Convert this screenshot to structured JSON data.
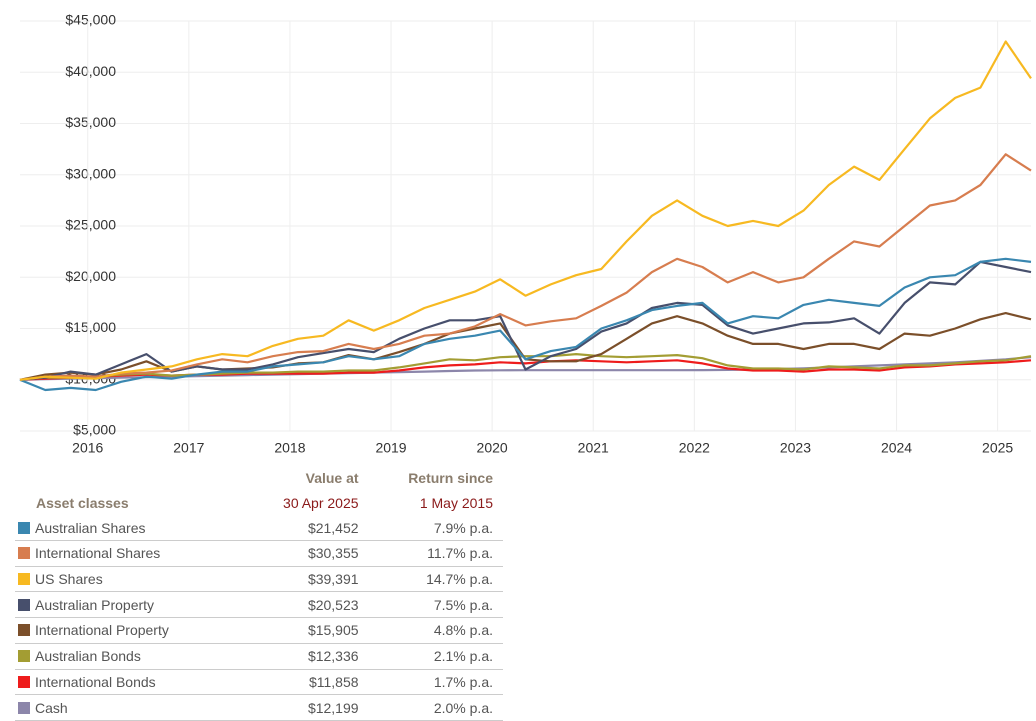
{
  "chart_data": {
    "type": "line",
    "x": [
      2015.33,
      2015.58,
      2015.83,
      2016.08,
      2016.33,
      2016.58,
      2016.83,
      2017.08,
      2017.33,
      2017.58,
      2017.83,
      2018.08,
      2018.33,
      2018.58,
      2018.83,
      2019.08,
      2019.33,
      2019.58,
      2019.83,
      2020.08,
      2020.33,
      2020.58,
      2020.83,
      2021.08,
      2021.33,
      2021.58,
      2021.83,
      2022.08,
      2022.33,
      2022.58,
      2022.83,
      2023.08,
      2023.33,
      2023.58,
      2023.83,
      2024.08,
      2024.33,
      2024.58,
      2024.83,
      2025.08,
      2025.33
    ],
    "xlim": [
      2015.33,
      2025.33
    ],
    "xticks": [
      2016,
      2017,
      2018,
      2019,
      2020,
      2021,
      2022,
      2023,
      2024,
      2025
    ],
    "ylim": [
      5000,
      45000
    ],
    "yticks": [
      {
        "value": 5000,
        "label": "$5,000"
      },
      {
        "value": 10000,
        "label": "$10,000"
      },
      {
        "value": 15000,
        "label": "$15,000"
      },
      {
        "value": 20000,
        "label": "$20,000"
      },
      {
        "value": 25000,
        "label": "$25,000"
      },
      {
        "value": 30000,
        "label": "$30,000"
      },
      {
        "value": 35000,
        "label": "$35,000"
      },
      {
        "value": 40000,
        "label": "$40,000"
      },
      {
        "value": 45000,
        "label": "$45,000"
      }
    ],
    "grid": true,
    "series": [
      {
        "name": "Cash",
        "color": "#8c86aa",
        "values": [
          10000,
          10050,
          10100,
          10150,
          10200,
          10250,
          10300,
          10350,
          10400,
          10450,
          10500,
          10550,
          10600,
          10650,
          10700,
          10750,
          10800,
          10850,
          10900,
          10920,
          10930,
          10930,
          10930,
          10930,
          10930,
          10930,
          10930,
          10940,
          10960,
          11000,
          11050,
          11120,
          11200,
          11300,
          11400,
          11500,
          11600,
          11700,
          11850,
          12000,
          12200
        ]
      },
      {
        "name": "International Bonds",
        "color": "#ee1c1c",
        "values": [
          10000,
          10100,
          10200,
          10300,
          10400,
          10500,
          10400,
          10500,
          10500,
          10600,
          10600,
          10600,
          10600,
          10700,
          10700,
          10900,
          11200,
          11400,
          11500,
          11700,
          11600,
          11800,
          11900,
          11800,
          11700,
          11800,
          11900,
          11600,
          11100,
          10900,
          10900,
          10800,
          11000,
          11000,
          10900,
          11200,
          11300,
          11500,
          11600,
          11700,
          11900
        ]
      },
      {
        "name": "Australian Bonds",
        "color": "#a39d33",
        "values": [
          10000,
          10200,
          10200,
          10300,
          10500,
          10600,
          10400,
          10500,
          10600,
          10700,
          10700,
          10800,
          10800,
          10900,
          10900,
          11200,
          11600,
          12000,
          11900,
          12200,
          12300,
          12300,
          12500,
          12300,
          12200,
          12300,
          12400,
          12100,
          11400,
          11100,
          11100,
          11000,
          11300,
          11200,
          11100,
          11400,
          11400,
          11600,
          11800,
          11900,
          12300
        ]
      },
      {
        "name": "International Property",
        "color": "#7b4f2a",
        "values": [
          10000,
          10500,
          10700,
          10500,
          11000,
          11800,
          10800,
          11300,
          11000,
          11100,
          11200,
          11600,
          11700,
          12400,
          12000,
          12700,
          13500,
          14500,
          15000,
          15500,
          12000,
          11800,
          11800,
          12500,
          14000,
          15500,
          16200,
          15500,
          14300,
          13500,
          13500,
          13000,
          13500,
          13500,
          13000,
          14500,
          14300,
          15000,
          15900,
          16500,
          15900
        ]
      },
      {
        "name": "Australian Property",
        "color": "#474f6c",
        "values": [
          10000,
          10200,
          10800,
          10500,
          11500,
          12500,
          10800,
          11300,
          11000,
          11000,
          11500,
          12200,
          12600,
          13000,
          12700,
          14000,
          15000,
          15800,
          15800,
          16200,
          11000,
          12300,
          13000,
          14700,
          15500,
          17000,
          17500,
          17300,
          15300,
          14500,
          15000,
          15500,
          15600,
          16000,
          14500,
          17500,
          19500,
          19300,
          21500,
          21000,
          20500
        ]
      },
      {
        "name": "Australian Shares",
        "color": "#3a87b0",
        "values": [
          10000,
          9000,
          9200,
          9000,
          9800,
          10300,
          10100,
          10500,
          10800,
          10800,
          11300,
          11500,
          11700,
          12300,
          12000,
          12300,
          13500,
          14000,
          14300,
          14800,
          12000,
          12800,
          13200,
          15000,
          15800,
          16800,
          17200,
          17500,
          15500,
          16200,
          16000,
          17300,
          17800,
          17500,
          17200,
          19000,
          20000,
          20200,
          21500,
          21800,
          21500
        ]
      },
      {
        "name": "International Shares",
        "color": "#d77d4f",
        "values": [
          10000,
          10300,
          10400,
          10300,
          10600,
          10700,
          10900,
          11500,
          12000,
          11700,
          12300,
          12700,
          12800,
          13500,
          13000,
          13500,
          14300,
          14500,
          15200,
          16400,
          15300,
          15700,
          16000,
          17200,
          18500,
          20500,
          21800,
          21000,
          19500,
          20500,
          19500,
          20000,
          21800,
          23500,
          23000,
          25000,
          27000,
          27500,
          29000,
          32000,
          30400
        ]
      },
      {
        "name": "US Shares",
        "color": "#f7b921",
        "values": [
          10000,
          10300,
          10200,
          10100,
          10700,
          11000,
          11300,
          12000,
          12500,
          12300,
          13300,
          14000,
          14300,
          15800,
          14800,
          15800,
          17000,
          17800,
          18600,
          19800,
          18200,
          19300,
          20200,
          20800,
          23500,
          26000,
          27500,
          26000,
          25000,
          25500,
          25000,
          26500,
          29000,
          30800,
          29500,
          32500,
          35500,
          37500,
          38500,
          43000,
          39400
        ]
      }
    ]
  },
  "table": {
    "header": {
      "asset": "Asset classes",
      "value": "Value at",
      "value_date": "30 Apr 2025",
      "return": "Return since",
      "return_date": "1 May 2015"
    },
    "rows": [
      {
        "name": "Australian Shares",
        "value": "$21,452",
        "return": "7.9% p.a."
      },
      {
        "name": "International Shares",
        "value": "$30,355",
        "return": "11.7% p.a."
      },
      {
        "name": "US Shares",
        "value": "$39,391",
        "return": "14.7% p.a."
      },
      {
        "name": "Australian Property",
        "value": "$20,523",
        "return": "7.5% p.a."
      },
      {
        "name": "International Property",
        "value": "$15,905",
        "return": "4.8% p.a."
      },
      {
        "name": "Australian Bonds",
        "value": "$12,336",
        "return": "2.1% p.a."
      },
      {
        "name": "International Bonds",
        "value": "$11,858",
        "return": "1.7% p.a."
      },
      {
        "name": "Cash",
        "value": "$12,199",
        "return": "2.0% p.a."
      }
    ]
  }
}
